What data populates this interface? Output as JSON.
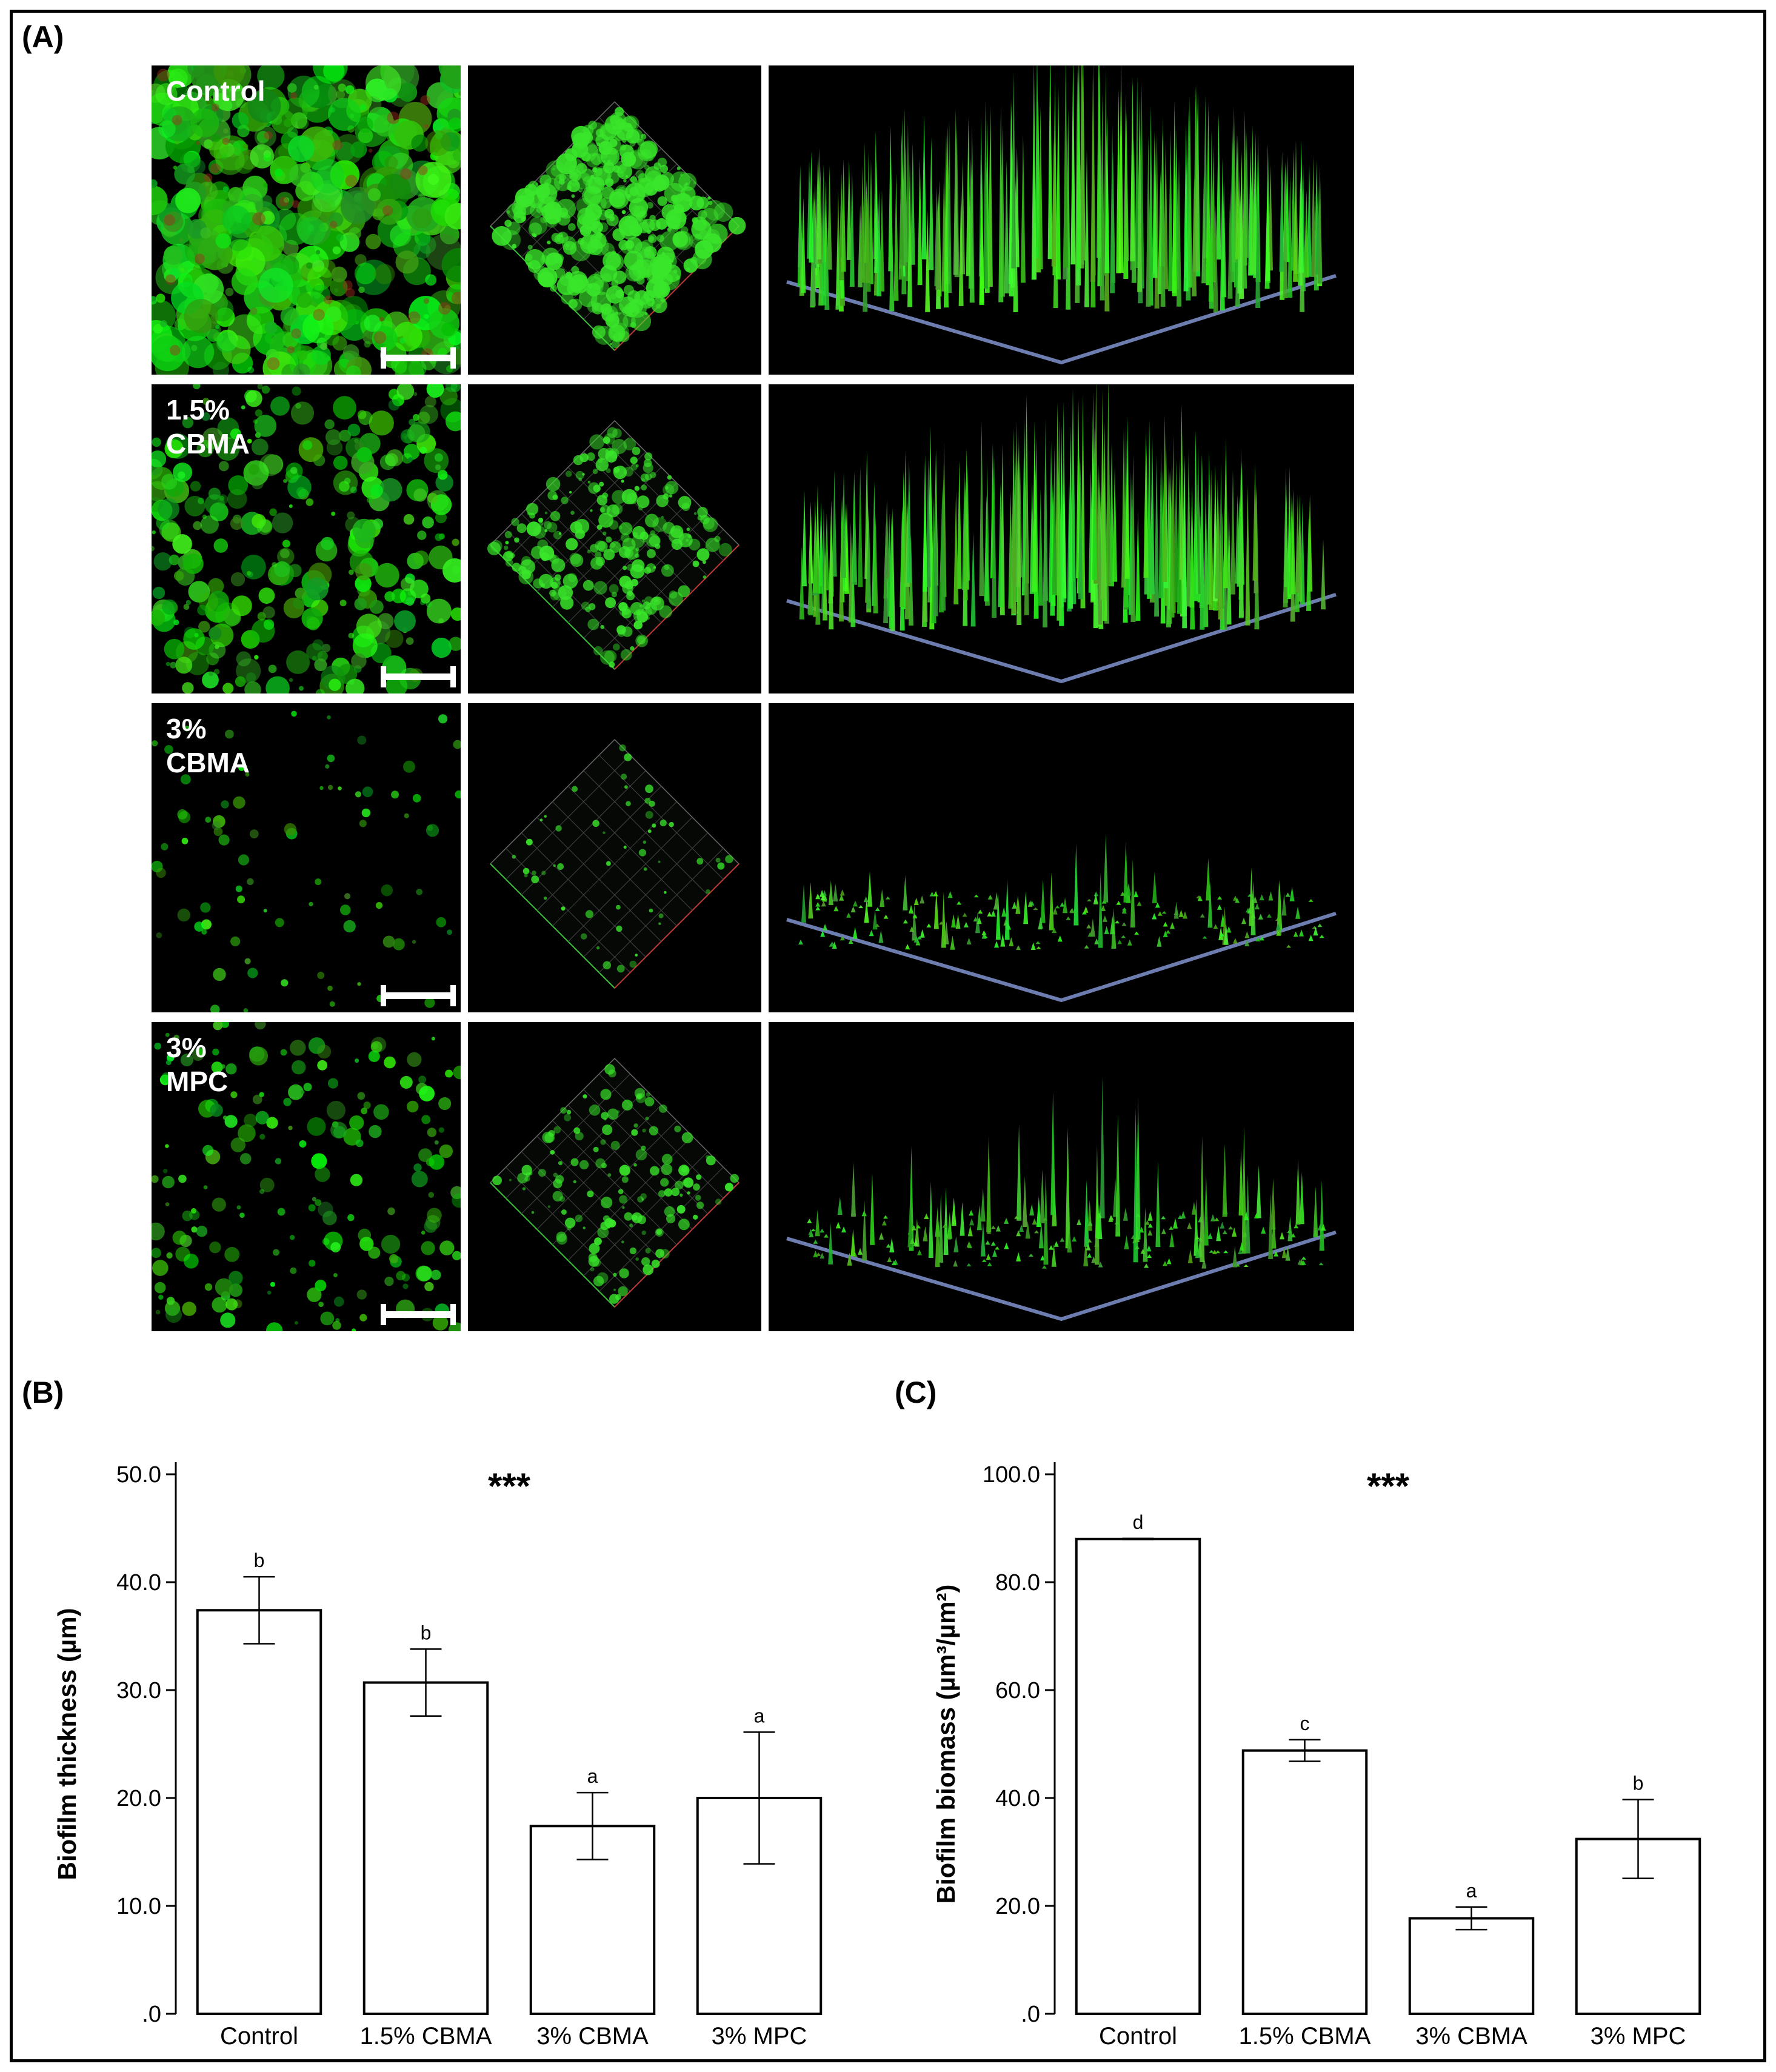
{
  "figure": {
    "panel_a": {
      "label": "(A)",
      "rows": [
        {
          "label": "Control",
          "density": 0.95,
          "peak": 1.0
        },
        {
          "label": "1.5%\nCBMA",
          "density": 0.55,
          "peak": 0.9
        },
        {
          "label": "3%\nCBMA",
          "density": 0.08,
          "peak": 0.35
        },
        {
          "label": "3%\nMPC",
          "density": 0.3,
          "peak": 0.75
        }
      ]
    },
    "panel_b": {
      "label": "(B)"
    },
    "panel_c": {
      "label": "(C)"
    },
    "colors": {
      "bar_fill": "#ffffff",
      "bar_stroke": "#000000",
      "fluor": "#39e62a",
      "background": "#000000"
    }
  },
  "chart_data": [
    {
      "type": "bar",
      "significance": "***",
      "categories": [
        "Control",
        "1.5% CBMA",
        "3% CBMA",
        "3%  MPC"
      ],
      "values": [
        37.4,
        30.7,
        17.4,
        20.0
      ],
      "errors": [
        3.1,
        3.1,
        3.1,
        6.1
      ],
      "letters": [
        "b",
        "b",
        "a",
        "a"
      ],
      "ylabel": "Biofilm thickness (µm)",
      "ylim": [
        0,
        50
      ],
      "yticks": [
        0,
        10,
        20,
        30,
        40,
        50
      ],
      "ytick_labels": [
        ".0",
        "10.0",
        "20.0",
        "30.0",
        "40.0",
        "50.0"
      ]
    },
    {
      "type": "bar",
      "significance": "***",
      "categories": [
        "Control",
        "1.5% CBMA",
        "3% CBMA",
        "3% MPC"
      ],
      "values": [
        88.0,
        48.8,
        17.7,
        32.4
      ],
      "errors": [
        0.1,
        2.0,
        2.1,
        7.3
      ],
      "letters": [
        "d",
        "c",
        "a",
        "b"
      ],
      "ylabel": "Biofilm biomass (µm³/µm²)",
      "ylim": [
        0,
        100
      ],
      "yticks": [
        0,
        20,
        40,
        60,
        80,
        100
      ],
      "ytick_labels": [
        ".0",
        "20.0",
        "40.0",
        "60.0",
        "80.0",
        "100.0"
      ]
    }
  ]
}
